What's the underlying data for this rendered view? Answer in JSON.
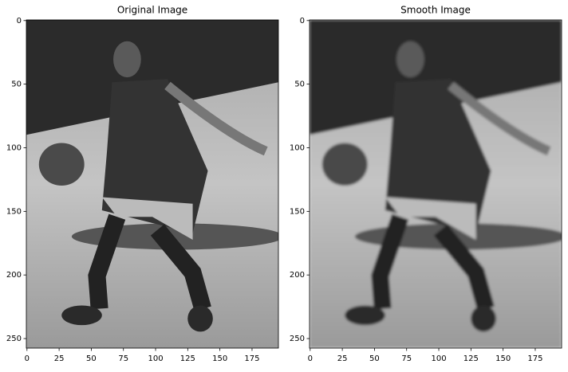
{
  "chart_data": [
    {
      "type": "image",
      "title": "Original Image",
      "xlim": [
        -0.5,
        195.5
      ],
      "ylim": [
        257.5,
        -0.5
      ],
      "xticks": [
        0,
        25,
        50,
        75,
        100,
        125,
        150,
        175
      ],
      "yticks": [
        0,
        50,
        100,
        150,
        200,
        250
      ],
      "smooth": false
    },
    {
      "type": "image",
      "title": "Smooth Image",
      "xlim": [
        -0.5,
        195.5
      ],
      "ylim": [
        257.5,
        -0.5
      ],
      "xticks": [
        0,
        25,
        50,
        75,
        100,
        125,
        150,
        175
      ],
      "yticks": [
        0,
        50,
        100,
        150,
        200,
        250
      ],
      "smooth": true
    }
  ]
}
